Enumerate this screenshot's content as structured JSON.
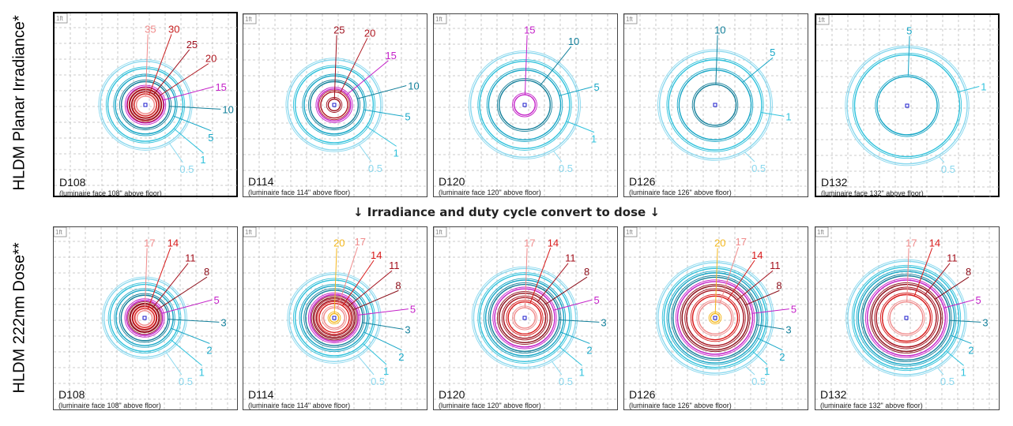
{
  "labels": {
    "row1": "HLDM Planar Irradiance*",
    "row2": "HLDM 222nm Dose**",
    "middle_caption": "↓ Irradiance and duty cycle convert to dose ↓",
    "scale": "1ft"
  },
  "colors": {
    "35": "#f08a8a",
    "30": "#c81e1e",
    "25": "#9e0f1c",
    "20": "#b01821",
    "15": "#c41fc8",
    "10": "#127f9a",
    "5": "#16a6c6",
    "1": "#30c2dc",
    "0.5": "#8ad8ee",
    "dose_20": "#f4b81e",
    "dose_17": "#f08a8a",
    "dose_14": "#d81818",
    "dose_11": "#a4101c",
    "dose_8": "#8b0d18",
    "dose_5": "#c41fc8",
    "dose_3": "#127f9a",
    "dose_2": "#16a6c6",
    "dose_1": "#30c2dc",
    "dose_0.5": "#8ad8ee",
    "center": "#1a1acc"
  },
  "chart_data": [
    {
      "type": "contour",
      "row": "irradiance",
      "panel": "D108",
      "caption": "(luminaire face 108\" above floor)",
      "levels": [
        35,
        30,
        25,
        20,
        15,
        10,
        5,
        1,
        0.5
      ],
      "label_positions": "radial-right",
      "radii_ft": [
        0.3,
        0.38,
        0.46,
        0.54,
        0.62,
        0.8,
        1.0,
        1.25,
        1.5
      ]
    },
    {
      "type": "contour",
      "row": "irradiance",
      "panel": "D114",
      "caption": "(luminaire face 114\" above floor)",
      "levels": [
        25,
        20,
        15,
        10,
        5,
        1,
        0.5
      ],
      "radii_ft": [
        0.2,
        0.45,
        0.55,
        0.8,
        1.0,
        1.3,
        1.55
      ]
    },
    {
      "type": "contour",
      "row": "irradiance",
      "panel": "D120",
      "caption": "(luminaire face 120\" above floor)",
      "levels": [
        15,
        10,
        5,
        1,
        0.5
      ],
      "radii_ft": [
        0.35,
        0.85,
        1.2,
        1.5,
        1.8
      ]
    },
    {
      "type": "contour",
      "row": "irradiance",
      "panel": "D126",
      "caption": "(luminaire face 126\" above floor)",
      "levels": [
        10,
        5,
        1,
        0.5
      ],
      "radii_ft": [
        0.7,
        1.2,
        1.55,
        1.85
      ]
    },
    {
      "type": "contour",
      "row": "irradiance",
      "panel": "D132",
      "caption": "(luminaire face 132\" above floor)",
      "levels": [
        5,
        1,
        0.5
      ],
      "radii_ft": [
        1.0,
        1.75,
        2.0
      ]
    },
    {
      "type": "contour",
      "row": "dose",
      "panel": "D108",
      "caption": "(luminaire face 108\" above floor)",
      "levels": [
        17,
        14,
        11,
        8,
        5,
        3,
        2,
        1,
        0.5
      ],
      "radii_ft": [
        0.25,
        0.33,
        0.41,
        0.5,
        0.6,
        0.78,
        0.95,
        1.15,
        1.35
      ]
    },
    {
      "type": "contour",
      "row": "dose",
      "panel": "D114",
      "caption": "(luminaire face 114\" above floor)",
      "levels": [
        20,
        17,
        14,
        11,
        8,
        5,
        3,
        2,
        1,
        0.5
      ],
      "radii_ft": [
        0.15,
        0.35,
        0.5,
        0.6,
        0.7,
        0.8,
        0.95,
        1.1,
        1.3,
        1.5
      ]
    },
    {
      "type": "contour",
      "row": "dose",
      "panel": "D120",
      "caption": "(luminaire face 120\" above floor)",
      "levels": [
        17,
        14,
        11,
        8,
        5,
        3,
        2,
        1,
        0.5
      ],
      "radii_ft": [
        0.35,
        0.55,
        0.7,
        0.85,
        1.0,
        1.15,
        1.3,
        1.5,
        1.7
      ]
    },
    {
      "type": "contour",
      "row": "dose",
      "panel": "D126",
      "caption": "(luminaire face 126\" above floor)",
      "levels": [
        20,
        17,
        14,
        11,
        8,
        5,
        3,
        2,
        1,
        0.5
      ],
      "radii_ft": [
        0.15,
        0.55,
        0.75,
        0.95,
        1.1,
        1.25,
        1.4,
        1.55,
        1.7,
        1.9
      ]
    },
    {
      "type": "contour",
      "row": "dose",
      "panel": "D132",
      "caption": "(luminaire face 132\" above floor)",
      "levels": [
        17,
        14,
        11,
        8,
        5,
        3,
        2,
        1,
        0.5
      ],
      "radii_ft": [
        0.55,
        0.8,
        1.0,
        1.15,
        1.3,
        1.45,
        1.6,
        1.75,
        1.95
      ]
    }
  ]
}
